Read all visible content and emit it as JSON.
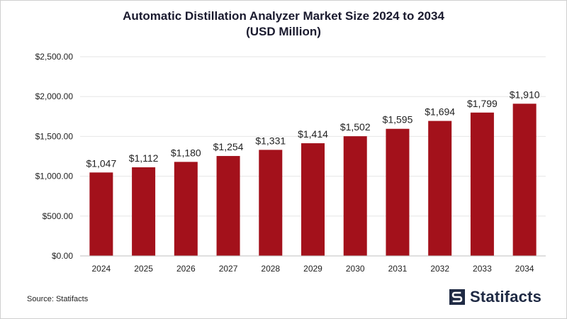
{
  "title_line1": "Automatic Distillation Analyzer Market Size 2024 to 2034",
  "title_line2": "(USD Million)",
  "source": "Source: Statifacts",
  "brand": {
    "name": "Statifacts",
    "icon": "statifacts-logo-icon"
  },
  "colors": {
    "bar": "#a3111b",
    "grid": "#e6e6e6",
    "axis": "#bfbfbf",
    "text": "#222222"
  },
  "chart_data": {
    "type": "bar",
    "title": "Automatic Distillation Analyzer Market Size 2024 to 2034 (USD Million)",
    "categories": [
      "2024",
      "2025",
      "2026",
      "2027",
      "2028",
      "2029",
      "2030",
      "2031",
      "2032",
      "2033",
      "2034"
    ],
    "values": [
      1047,
      1112,
      1180,
      1254,
      1331,
      1414,
      1502,
      1595,
      1694,
      1799,
      1910
    ],
    "value_labels": [
      "$1,047",
      "$1,112",
      "$1,180",
      "$1,254",
      "$1,331",
      "$1,414",
      "$1,502",
      "$1,595",
      "$1,694",
      "$1,799",
      "$1,910"
    ],
    "yticks": [
      0,
      500,
      1000,
      1500,
      2000,
      2500
    ],
    "ytick_labels": [
      "$0.00",
      "$500.00",
      "$1,000.00",
      "$1,500.00",
      "$2,000.00",
      "$2,500.00"
    ],
    "ylim": [
      0,
      2500
    ],
    "grid": true,
    "legend": "none",
    "xlabel": "",
    "ylabel": ""
  }
}
